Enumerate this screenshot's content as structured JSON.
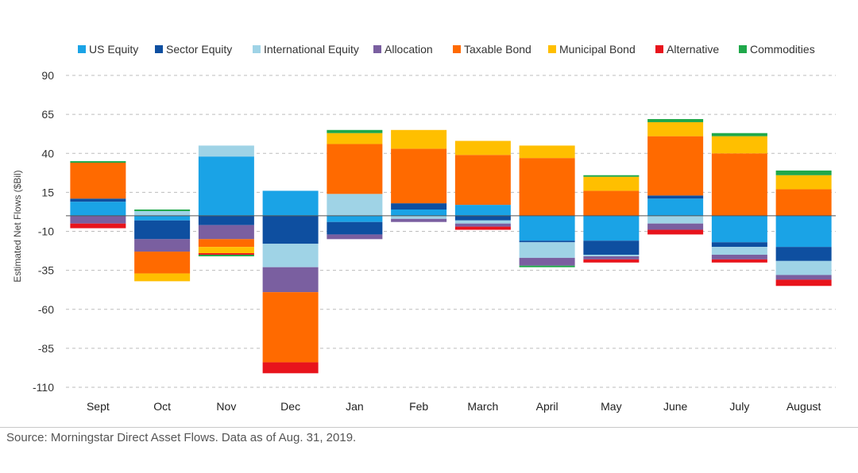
{
  "chart_data": {
    "type": "bar",
    "stacked": true,
    "title": "",
    "xlabel": "",
    "ylabel": "Estimated Net Flows ($Bil)",
    "ylim": [
      -110,
      90
    ],
    "yticks": [
      90,
      65,
      40,
      15,
      -10,
      -35,
      -60,
      -85,
      -110
    ],
    "grid": true,
    "legend_position": "top",
    "categories": [
      "Sept",
      "Oct",
      "Nov",
      "Dec",
      "Jan",
      "Feb",
      "March",
      "April",
      "May",
      "June",
      "July",
      "August"
    ],
    "series": [
      {
        "name": "US Equity",
        "color": "#1aa3e6",
        "values": [
          9,
          -3,
          38,
          16,
          -4,
          4,
          7,
          -16,
          -16,
          11,
          -17,
          -20
        ]
      },
      {
        "name": "Sector Equity",
        "color": "#0e4fa0",
        "values": [
          2,
          -12,
          -6,
          -18,
          -8,
          4,
          -3,
          -1,
          -9,
          2,
          -3,
          -9
        ]
      },
      {
        "name": "International Equity",
        "color": "#9fd3e6",
        "values": [
          0,
          3,
          7,
          -15,
          14,
          -2,
          -2,
          -10,
          -1,
          -5,
          -5,
          -9
        ]
      },
      {
        "name": "Allocation",
        "color": "#7a5fa0",
        "values": [
          -5,
          -8,
          -9,
          -16,
          -3,
          -2,
          -2,
          -5,
          -2,
          -4,
          -3,
          -3
        ]
      },
      {
        "name": "Taxable Bond",
        "color": "#ff6a00",
        "values": [
          23,
          -14,
          -5,
          -45,
          32,
          35,
          32,
          37,
          16,
          38,
          40,
          17
        ]
      },
      {
        "name": "Municipal Bond",
        "color": "#ffbf00",
        "values": [
          0,
          -5,
          -4,
          0,
          7,
          12,
          9,
          8,
          9,
          9,
          11,
          9
        ]
      },
      {
        "name": "Alternative",
        "color": "#e8141c",
        "values": [
          -3,
          0,
          -1,
          -7,
          0,
          0,
          -2,
          0,
          -2,
          -3,
          -2,
          -4
        ]
      },
      {
        "name": "Commodities",
        "color": "#1fa84a",
        "values": [
          1,
          1,
          -1,
          0,
          2,
          0,
          0,
          -1,
          1,
          2,
          2,
          3
        ]
      }
    ]
  },
  "source_note": "Source: Morningstar Direct Asset Flows. Data as of Aug. 31, 2019."
}
